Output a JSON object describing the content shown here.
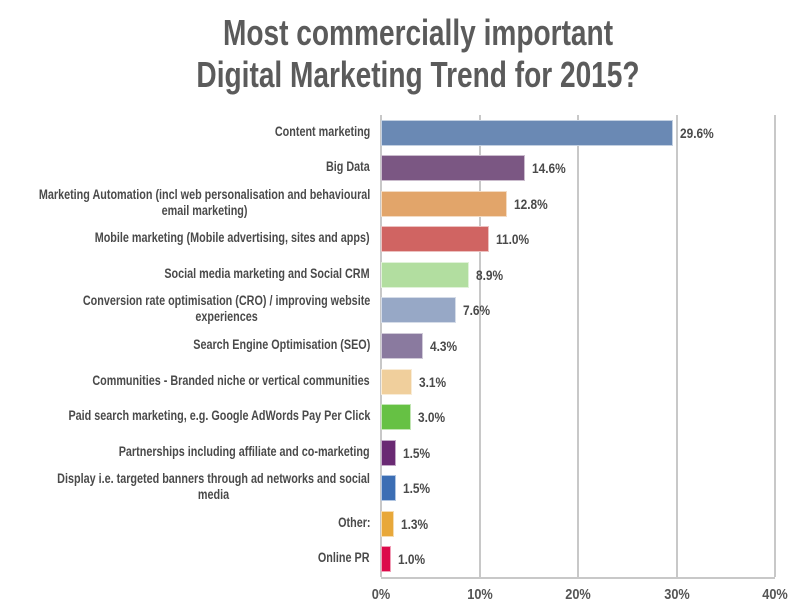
{
  "chart_data": {
    "type": "bar",
    "orientation": "horizontal",
    "title": [
      "Most commercially important",
      "Digital Marketing Trend for 2015?"
    ],
    "categories": [
      "Content marketing",
      "Big Data",
      "Marketing Automation (incl web personalisation and behavioural\nemail marketing)",
      "Mobile marketing (Mobile advertising, sites and apps)",
      "Social media marketing and Social CRM",
      "Conversion rate optimisation (CRO) / improving website\nexperiences",
      "Search Engine Optimisation (SEO)",
      "Communities - Branded niche or vertical communities",
      "Paid search marketing, e.g. Google AdWords Pay Per Click",
      "Partnerships including affiliate and co-marketing",
      "Display i.e. targeted banners through ad networks and social\nmedia",
      "Other:",
      "Online PR"
    ],
    "values": [
      29.6,
      14.6,
      12.8,
      11.0,
      8.9,
      7.6,
      4.3,
      3.1,
      3.0,
      1.5,
      1.5,
      1.3,
      1.0
    ],
    "data_labels": [
      "29.6%",
      "14.6%",
      "12.8%",
      "11.0%",
      "8.9%",
      "7.6%",
      "4.3%",
      "3.1%",
      "3.0%",
      "1.5%",
      "1.5%",
      "1.3%",
      "1.0%"
    ],
    "colors": [
      "#6a89b4",
      "#7b5783",
      "#e2a56a",
      "#d06462",
      "#b2dea0",
      "#97a8c6",
      "#8a7a9f",
      "#f0cf9c",
      "#66c144",
      "#6a2a73",
      "#3c6eb4",
      "#e8a83a",
      "#dc0a4a"
    ],
    "xlim": [
      0,
      40
    ],
    "x_ticks": [
      "0%",
      "10%",
      "20%",
      "30%",
      "40%"
    ],
    "grid": true,
    "xlabel": "",
    "ylabel": ""
  }
}
